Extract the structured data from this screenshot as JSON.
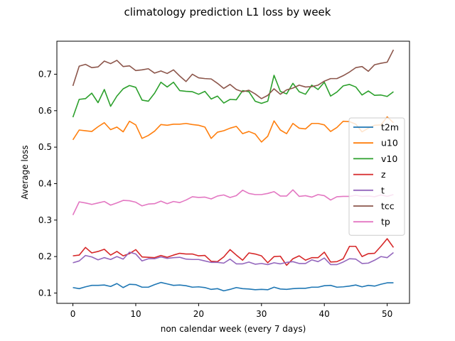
{
  "chart_data": {
    "type": "line",
    "title": "climatology prediction L1 loss by week",
    "xlabel": "non calendar week (every 7 days)",
    "ylabel": "Average loss",
    "xlim": [
      -2.55,
      53.55
    ],
    "ylim": [
      0.0717,
      0.7905
    ],
    "xticks": [
      "0",
      "10",
      "20",
      "30",
      "40",
      "50"
    ],
    "yticks": [
      "0.1",
      "0.2",
      "0.3",
      "0.4",
      "0.5",
      "0.6",
      "0.7"
    ],
    "grid": false,
    "legend_position": "right",
    "x": [
      0,
      1,
      2,
      3,
      4,
      5,
      6,
      7,
      8,
      9,
      10,
      11,
      12,
      13,
      14,
      15,
      16,
      17,
      18,
      19,
      20,
      21,
      22,
      23,
      24,
      25,
      26,
      27,
      28,
      29,
      30,
      31,
      32,
      33,
      34,
      35,
      36,
      37,
      38,
      39,
      40,
      41,
      42,
      43,
      44,
      45,
      46,
      47,
      48,
      49,
      50,
      51
    ],
    "series": [
      {
        "name": "t2m",
        "color": "#1f77b4",
        "values": [
          0.115,
          0.112,
          0.117,
          0.121,
          0.121,
          0.122,
          0.118,
          0.126,
          0.115,
          0.124,
          0.123,
          0.116,
          0.116,
          0.123,
          0.129,
          0.125,
          0.121,
          0.122,
          0.12,
          0.116,
          0.117,
          0.115,
          0.11,
          0.112,
          0.106,
          0.11,
          0.115,
          0.112,
          0.111,
          0.109,
          0.11,
          0.109,
          0.116,
          0.111,
          0.11,
          0.112,
          0.113,
          0.113,
          0.116,
          0.116,
          0.12,
          0.121,
          0.116,
          0.117,
          0.119,
          0.122,
          0.117,
          0.121,
          0.119,
          0.124,
          0.128,
          0.128
        ]
      },
      {
        "name": "u10",
        "color": "#ff7f0e",
        "values": [
          0.52,
          0.547,
          0.545,
          0.543,
          0.556,
          0.567,
          0.548,
          0.555,
          0.542,
          0.571,
          0.561,
          0.524,
          0.532,
          0.544,
          0.562,
          0.56,
          0.563,
          0.563,
          0.565,
          0.562,
          0.56,
          0.555,
          0.524,
          0.541,
          0.545,
          0.552,
          0.557,
          0.537,
          0.543,
          0.536,
          0.514,
          0.53,
          0.572,
          0.547,
          0.537,
          0.565,
          0.552,
          0.55,
          0.565,
          0.565,
          0.561,
          0.543,
          0.554,
          0.571,
          0.57,
          0.563,
          0.542,
          0.552,
          0.56,
          0.561,
          0.583,
          0.567
        ]
      },
      {
        "name": "v10",
        "color": "#2ca02c",
        "values": [
          0.582,
          0.631,
          0.633,
          0.648,
          0.622,
          0.658,
          0.612,
          0.64,
          0.66,
          0.669,
          0.664,
          0.629,
          0.626,
          0.648,
          0.678,
          0.665,
          0.678,
          0.655,
          0.653,
          0.652,
          0.645,
          0.653,
          0.632,
          0.64,
          0.621,
          0.631,
          0.63,
          0.655,
          0.652,
          0.626,
          0.62,
          0.626,
          0.697,
          0.653,
          0.646,
          0.675,
          0.652,
          0.645,
          0.67,
          0.658,
          0.678,
          0.64,
          0.651,
          0.668,
          0.672,
          0.665,
          0.643,
          0.654,
          0.642,
          0.643,
          0.639,
          0.652
        ]
      },
      {
        "name": "z",
        "color": "#d62728",
        "values": [
          0.202,
          0.204,
          0.225,
          0.21,
          0.214,
          0.22,
          0.204,
          0.214,
          0.202,
          0.208,
          0.219,
          0.199,
          0.198,
          0.197,
          0.203,
          0.198,
          0.204,
          0.209,
          0.207,
          0.207,
          0.202,
          0.203,
          0.187,
          0.186,
          0.199,
          0.219,
          0.204,
          0.19,
          0.21,
          0.207,
          0.202,
          0.183,
          0.2,
          0.201,
          0.176,
          0.194,
          0.202,
          0.19,
          0.197,
          0.197,
          0.212,
          0.185,
          0.186,
          0.194,
          0.228,
          0.228,
          0.2,
          0.208,
          0.209,
          0.228,
          0.249,
          0.225
        ]
      },
      {
        "name": "t",
        "color": "#9467bd",
        "values": [
          0.183,
          0.188,
          0.203,
          0.199,
          0.191,
          0.197,
          0.192,
          0.2,
          0.193,
          0.212,
          0.207,
          0.188,
          0.194,
          0.194,
          0.199,
          0.195,
          0.197,
          0.198,
          0.193,
          0.192,
          0.192,
          0.188,
          0.184,
          0.184,
          0.182,
          0.193,
          0.18,
          0.18,
          0.185,
          0.179,
          0.181,
          0.178,
          0.183,
          0.18,
          0.184,
          0.186,
          0.181,
          0.181,
          0.191,
          0.186,
          0.196,
          0.178,
          0.178,
          0.185,
          0.194,
          0.193,
          0.181,
          0.182,
          0.19,
          0.2,
          0.197,
          0.211
        ]
      },
      {
        "name": "tcc",
        "color": "#8c564b",
        "values": [
          0.668,
          0.722,
          0.727,
          0.718,
          0.72,
          0.736,
          0.729,
          0.738,
          0.721,
          0.723,
          0.71,
          0.712,
          0.715,
          0.703,
          0.709,
          0.702,
          0.712,
          0.695,
          0.68,
          0.7,
          0.69,
          0.688,
          0.687,
          0.675,
          0.661,
          0.672,
          0.658,
          0.652,
          0.656,
          0.646,
          0.633,
          0.642,
          0.66,
          0.645,
          0.657,
          0.662,
          0.67,
          0.665,
          0.666,
          0.67,
          0.681,
          0.688,
          0.688,
          0.696,
          0.706,
          0.718,
          0.721,
          0.708,
          0.726,
          0.73,
          0.733,
          0.767
        ]
      },
      {
        "name": "tp",
        "color": "#e377c2",
        "values": [
          0.314,
          0.35,
          0.347,
          0.343,
          0.347,
          0.351,
          0.341,
          0.347,
          0.354,
          0.353,
          0.349,
          0.339,
          0.344,
          0.345,
          0.352,
          0.345,
          0.351,
          0.348,
          0.355,
          0.364,
          0.362,
          0.363,
          0.358,
          0.366,
          0.369,
          0.362,
          0.367,
          0.382,
          0.373,
          0.37,
          0.37,
          0.373,
          0.378,
          0.366,
          0.366,
          0.383,
          0.365,
          0.367,
          0.363,
          0.37,
          0.367,
          0.355,
          0.364,
          0.365,
          0.365,
          0.368,
          0.365,
          0.366,
          0.364,
          0.369,
          0.365,
          0.37
        ]
      }
    ]
  }
}
